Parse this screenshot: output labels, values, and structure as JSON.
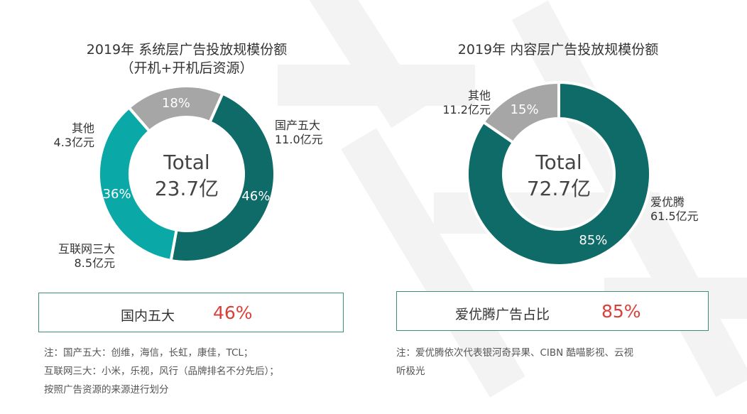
{
  "chart_data": [
    {
      "type": "pie",
      "title": "2019年 系统层广告投放规模份额",
      "subtitle": "（开机+开机后资源）",
      "center_label": "Total",
      "center_value": "23.7亿",
      "series": [
        {
          "name": "国产五大",
          "value": 11.0,
          "value_label": "11.0亿元",
          "percent_label": "46%",
          "color": "#0e6b68",
          "percent_color": "#ffffff"
        },
        {
          "name": "互联网三大",
          "value": 8.5,
          "value_label": "8.5亿元",
          "percent_label": "36%",
          "color": "#0aa9a8",
          "percent_color": "#ffffff"
        },
        {
          "name": "其他",
          "value": 4.3,
          "value_label": "4.3亿元",
          "percent_label": "18%",
          "color": "#a6a6a6",
          "percent_color": "#ffffff"
        }
      ]
    },
    {
      "type": "pie",
      "title": "2019年 内容层广告投放规模份额",
      "center_label": "Total",
      "center_value": "72.7亿",
      "series": [
        {
          "name": "爱优腾",
          "value": 61.5,
          "value_label": "61.5亿元",
          "percent_label": "85%",
          "color": "#0e6b68",
          "percent_color": "#ffffff"
        },
        {
          "name": "其他",
          "value": 11.2,
          "value_label": "11.2亿元",
          "percent_label": "15%",
          "color": "#a6a6a6",
          "percent_color": "#ffffff"
        }
      ]
    }
  ],
  "summary_left": {
    "label": "国内五大",
    "value": "46%"
  },
  "summary_right": {
    "label": "爱优腾广告占比",
    "value": "85%"
  },
  "notes_left": [
    "注：国产五大：创维，海信，长虹，康佳，TCL；",
    "互联网三大：小米，乐视，风行（品牌排名不分先后）；",
    "按照广告资源的来源进行划分"
  ],
  "notes_right": [
    "注：爱优腾依次代表银河奇异果、CIBN 酷喵影视、云视",
    "听极光"
  ],
  "colors": {
    "accent_dark": "#0e6b68",
    "accent_light": "#0aa9a8",
    "gray": "#a6a6a6",
    "highlight": "#d9403a",
    "box_border": "#3d8f7c"
  }
}
